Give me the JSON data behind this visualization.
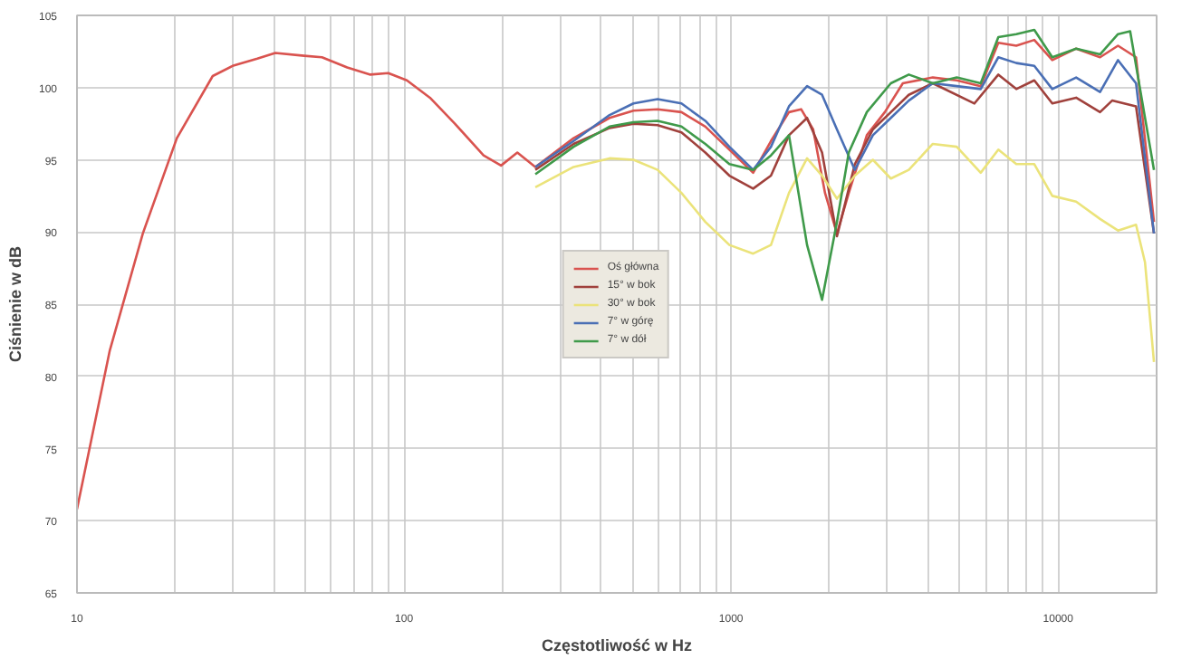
{
  "chart_data": {
    "type": "line",
    "xlabel": "Częstotliwość w Hz",
    "ylabel": "Ciśnienie w dB",
    "log": "x",
    "xlim": [
      10,
      20000
    ],
    "ylim": [
      65,
      105
    ],
    "xticks": [
      10,
      {
        "value": 20,
        "label": null
      },
      {
        "value": 30,
        "label": null
      },
      {
        "value": 40,
        "label": null
      },
      {
        "value": 50,
        "label": null
      },
      {
        "value": 60,
        "label": null
      },
      {
        "value": 70,
        "label": null
      },
      {
        "value": 80,
        "label": null
      },
      {
        "value": 90,
        "label": null
      },
      100,
      {
        "value": 200,
        "label": null
      },
      {
        "value": 300,
        "label": null
      },
      {
        "value": 400,
        "label": null
      },
      {
        "value": 500,
        "label": null
      },
      {
        "value": 600,
        "label": null
      },
      {
        "value": 700,
        "label": null
      },
      {
        "value": 800,
        "label": null
      },
      {
        "value": 900,
        "label": null
      },
      1000,
      {
        "value": 2000,
        "label": null
      },
      {
        "value": 3000,
        "label": null
      },
      {
        "value": 4000,
        "label": null
      },
      {
        "value": 5000,
        "label": null
      },
      {
        "value": 6000,
        "label": null
      },
      {
        "value": 7000,
        "label": null
      },
      {
        "value": 8000,
        "label": null
      },
      {
        "value": 9000,
        "label": null
      },
      10000
    ],
    "yticks": [
      65,
      70,
      75,
      80,
      85,
      90,
      95,
      100,
      105
    ],
    "grid": true,
    "legend": "center",
    "marker": "none",
    "line_style": "solid",
    "series": [
      {
        "name": "Oś główna",
        "color": "#d9534f",
        "x": [
          10,
          12.6,
          15.9,
          20.2,
          26,
          29.9,
          35.6,
          40.4,
          49.5,
          56.1,
          67,
          78.9,
          89.5,
          102,
          120,
          143,
          175,
          198,
          222,
          252,
          330,
          425,
          503,
          596,
          705,
          834,
          988,
          1168,
          1324,
          1503,
          1637,
          1782,
          1937,
          2107,
          2290,
          2600,
          2951,
          3350,
          4137,
          4897,
          5797,
          6563,
          7447,
          8453,
          9595,
          11350,
          13430,
          15240,
          17300,
          19630
        ],
        "values": [
          70.8,
          81.8,
          89.9,
          96.5,
          100.8,
          101.5,
          102.0,
          102.4,
          102.2,
          102.1,
          101.4,
          100.9,
          101.0,
          100.5,
          99.3,
          97.5,
          95.3,
          94.6,
          95.5,
          94.5,
          96.5,
          97.9,
          98.4,
          98.5,
          98.3,
          97.3,
          95.7,
          94.1,
          96.3,
          98.3,
          98.5,
          97.1,
          92.7,
          89.9,
          92.7,
          96.7,
          98.3,
          100.3,
          100.7,
          100.5,
          100.1,
          103.1,
          102.9,
          103.3,
          101.9,
          102.7,
          102.1,
          102.9,
          102.1,
          90.7
        ]
      },
      {
        "name": "15° w bok",
        "color": "#a0413c",
        "x": [
          252,
          330,
          425,
          503,
          596,
          705,
          834,
          988,
          1168,
          1324,
          1503,
          1707,
          1897,
          2107,
          2390,
          2713,
          3079,
          3494,
          4137,
          5547,
          6563,
          7447,
          8453,
          9595,
          11350,
          13430,
          14620,
          17300,
          19630
        ],
        "values": [
          94.3,
          96.1,
          97.2,
          97.5,
          97.4,
          96.9,
          95.5,
          93.9,
          93.0,
          93.9,
          96.7,
          97.9,
          95.5,
          89.7,
          94.7,
          97.1,
          98.3,
          99.5,
          100.3,
          98.9,
          100.9,
          99.9,
          100.5,
          98.9,
          99.3,
          98.3,
          99.1,
          98.7,
          89.9
        ]
      },
      {
        "name": "30° w bok",
        "color": "#ebe37a",
        "x": [
          252,
          330,
          425,
          503,
          596,
          705,
          834,
          988,
          1168,
          1324,
          1503,
          1707,
          1897,
          2107,
          2390,
          2713,
          3079,
          3494,
          4137,
          4897,
          5797,
          6563,
          7447,
          8453,
          9595,
          11350,
          13430,
          15240,
          17300,
          18430,
          19630
        ],
        "values": [
          93.1,
          94.5,
          95.1,
          95.0,
          94.3,
          92.7,
          90.7,
          89.1,
          88.5,
          89.1,
          92.7,
          95.1,
          93.9,
          92.3,
          93.9,
          95.0,
          93.7,
          94.3,
          96.1,
          95.9,
          94.1,
          95.7,
          94.7,
          94.7,
          92.5,
          92.1,
          90.9,
          90.1,
          90.5,
          87.9,
          81.0
        ]
      },
      {
        "name": "7° w górę",
        "color": "#4a6fb5",
        "x": [
          252,
          330,
          425,
          503,
          596,
          705,
          834,
          988,
          1168,
          1324,
          1503,
          1707,
          1897,
          2107,
          2390,
          2713,
          3079,
          3494,
          4137,
          4897,
          5797,
          6563,
          7447,
          8453,
          9595,
          11350,
          13430,
          15240,
          17300,
          19630
        ],
        "values": [
          94.5,
          96.3,
          98.1,
          98.9,
          99.2,
          98.9,
          97.7,
          95.9,
          94.3,
          95.9,
          98.7,
          100.1,
          99.5,
          97.1,
          94.3,
          96.7,
          97.9,
          99.1,
          100.3,
          100.1,
          99.9,
          102.1,
          101.7,
          101.5,
          99.9,
          100.7,
          99.7,
          101.9,
          100.3,
          89.9
        ]
      },
      {
        "name": "7° w dół",
        "color": "#3f9a4a",
        "x": [
          252,
          330,
          425,
          503,
          596,
          705,
          834,
          988,
          1168,
          1324,
          1503,
          1707,
          1897,
          2107,
          2290,
          2600,
          3079,
          3494,
          4137,
          4897,
          5797,
          6563,
          7447,
          8453,
          9595,
          11350,
          13430,
          15240,
          16600,
          19630
        ],
        "values": [
          94.0,
          95.9,
          97.3,
          97.6,
          97.7,
          97.3,
          96.1,
          94.7,
          94.3,
          95.3,
          96.7,
          89.1,
          85.3,
          90.7,
          95.5,
          98.3,
          100.3,
          100.9,
          100.3,
          100.7,
          100.3,
          103.5,
          103.7,
          104.0,
          102.1,
          102.7,
          102.3,
          103.7,
          103.9,
          94.3
        ]
      }
    ]
  }
}
